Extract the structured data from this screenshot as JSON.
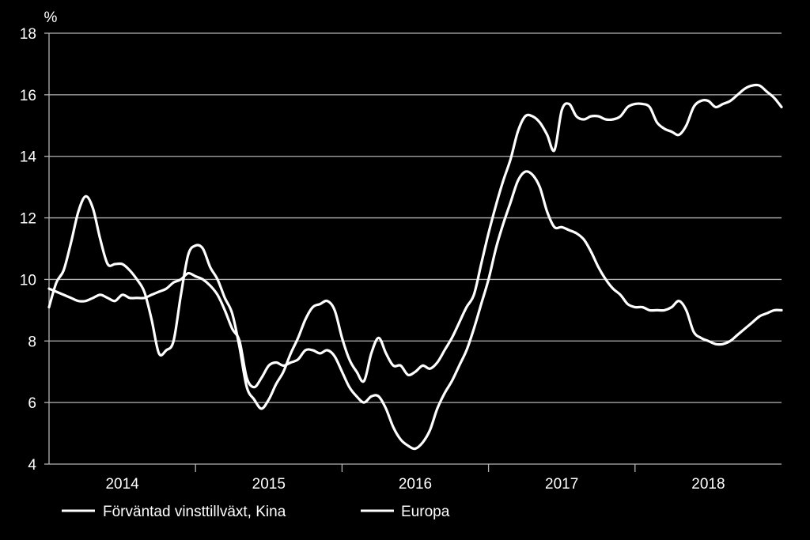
{
  "chart_data": {
    "type": "line",
    "ylabel": "%",
    "ylim": [
      4,
      18
    ],
    "yticks": [
      "4",
      "6",
      "8",
      "10",
      "12",
      "14",
      "16",
      "18"
    ],
    "xlim": [
      2013.0,
      2018.0
    ],
    "year_labels": [
      "2014",
      "2015",
      "2016",
      "2017",
      "2018"
    ],
    "grid": "horizontal",
    "legend_position": "bottom",
    "line_color": "#ffffff",
    "series": [
      {
        "name": "Förväntad vinsttillväxt, Kina",
        "x": [
          2013.0,
          2013.05,
          2013.1,
          2013.15,
          2013.2,
          2013.25,
          2013.3,
          2013.35,
          2013.4,
          2013.45,
          2013.5,
          2013.55,
          2013.6,
          2013.65,
          2013.7,
          2013.75,
          2013.8,
          2013.85,
          2013.9,
          2013.95,
          2014.0,
          2014.05,
          2014.1,
          2014.15,
          2014.2,
          2014.25,
          2014.3,
          2014.35,
          2014.4,
          2014.45,
          2014.5,
          2014.55,
          2014.6,
          2014.65,
          2014.7,
          2014.75,
          2014.8,
          2014.85,
          2014.9,
          2014.95,
          2015.0,
          2015.05,
          2015.1,
          2015.15,
          2015.2,
          2015.25,
          2015.3,
          2015.35,
          2015.4,
          2015.45,
          2015.5,
          2015.55,
          2015.6,
          2015.65,
          2015.7,
          2015.75,
          2015.8,
          2015.85,
          2015.9,
          2015.95,
          2016.0,
          2016.05,
          2016.1,
          2016.15,
          2016.2,
          2016.25,
          2016.3,
          2016.35,
          2016.4,
          2016.45,
          2016.5,
          2016.55,
          2016.6,
          2016.65,
          2016.7,
          2016.75,
          2016.8,
          2016.85,
          2016.9,
          2016.95,
          2017.0,
          2017.05,
          2017.1,
          2017.15,
          2017.2,
          2017.25,
          2017.3,
          2017.35,
          2017.4,
          2017.45,
          2017.5,
          2017.55,
          2017.6,
          2017.65,
          2017.7,
          2017.75,
          2017.8,
          2017.85,
          2017.9,
          2017.95,
          2018.0
        ],
        "values": [
          9.1,
          9.9,
          10.3,
          11.2,
          12.2,
          12.7,
          12.3,
          11.3,
          10.5,
          10.5,
          10.5,
          10.3,
          10.0,
          9.6,
          8.7,
          7.6,
          7.7,
          8.0,
          9.5,
          10.8,
          11.1,
          11.0,
          10.4,
          10.0,
          9.4,
          8.9,
          7.8,
          6.5,
          6.1,
          5.8,
          6.1,
          6.6,
          7.0,
          7.6,
          8.1,
          8.7,
          9.1,
          9.2,
          9.3,
          9.0,
          8.1,
          7.4,
          7.0,
          6.7,
          7.6,
          8.1,
          7.6,
          7.2,
          7.2,
          6.9,
          7.0,
          7.2,
          7.1,
          7.3,
          7.7,
          8.1,
          8.6,
          9.1,
          9.5,
          10.5,
          11.5,
          12.4,
          13.2,
          13.9,
          14.8,
          15.3,
          15.3,
          15.1,
          14.7,
          14.2,
          15.5,
          15.7,
          15.3,
          15.2,
          15.3,
          15.3,
          15.2,
          15.2,
          15.3,
          15.6,
          15.7,
          15.7,
          15.6,
          15.1,
          14.9,
          14.8,
          14.7,
          15.0,
          15.6,
          15.8,
          15.8,
          15.6,
          15.7,
          15.8,
          16.0,
          16.2,
          16.3,
          16.3,
          16.1,
          15.9,
          15.6
        ]
      },
      {
        "name": "Europa",
        "x": [
          2013.0,
          2013.05,
          2013.1,
          2013.15,
          2013.2,
          2013.25,
          2013.3,
          2013.35,
          2013.4,
          2013.45,
          2013.5,
          2013.55,
          2013.6,
          2013.65,
          2013.7,
          2013.75,
          2013.8,
          2013.85,
          2013.9,
          2013.95,
          2014.0,
          2014.05,
          2014.1,
          2014.15,
          2014.2,
          2014.25,
          2014.3,
          2014.35,
          2014.4,
          2014.45,
          2014.5,
          2014.55,
          2014.6,
          2014.65,
          2014.7,
          2014.75,
          2014.8,
          2014.85,
          2014.9,
          2014.95,
          2015.0,
          2015.05,
          2015.1,
          2015.15,
          2015.2,
          2015.25,
          2015.3,
          2015.35,
          2015.4,
          2015.45,
          2015.5,
          2015.55,
          2015.6,
          2015.65,
          2015.7,
          2015.75,
          2015.8,
          2015.85,
          2015.9,
          2015.95,
          2016.0,
          2016.05,
          2016.1,
          2016.15,
          2016.2,
          2016.25,
          2016.3,
          2016.35,
          2016.4,
          2016.45,
          2016.5,
          2016.55,
          2016.6,
          2016.65,
          2016.7,
          2016.75,
          2016.8,
          2016.85,
          2016.9,
          2016.95,
          2017.0,
          2017.05,
          2017.1,
          2017.15,
          2017.2,
          2017.25,
          2017.3,
          2017.35,
          2017.4,
          2017.45,
          2017.5,
          2017.55,
          2017.6,
          2017.65,
          2017.7,
          2017.75,
          2017.8,
          2017.85,
          2017.9,
          2017.95,
          2018.0
        ],
        "values": [
          9.7,
          9.6,
          9.5,
          9.4,
          9.3,
          9.3,
          9.4,
          9.5,
          9.4,
          9.3,
          9.5,
          9.4,
          9.4,
          9.4,
          9.5,
          9.6,
          9.7,
          9.9,
          10.0,
          10.2,
          10.1,
          10.0,
          9.8,
          9.5,
          9.0,
          8.4,
          8.0,
          6.8,
          6.5,
          6.8,
          7.2,
          7.3,
          7.2,
          7.3,
          7.4,
          7.7,
          7.7,
          7.6,
          7.7,
          7.5,
          7.0,
          6.5,
          6.2,
          6.0,
          6.2,
          6.2,
          5.8,
          5.2,
          4.8,
          4.6,
          4.5,
          4.7,
          5.1,
          5.8,
          6.3,
          6.7,
          7.2,
          7.7,
          8.4,
          9.2,
          10.0,
          11.0,
          11.8,
          12.5,
          13.2,
          13.5,
          13.4,
          13.0,
          12.2,
          11.7,
          11.7,
          11.6,
          11.5,
          11.3,
          10.9,
          10.4,
          10.0,
          9.7,
          9.5,
          9.2,
          9.1,
          9.1,
          9.0,
          9.0,
          9.0,
          9.1,
          9.3,
          9.0,
          8.3,
          8.1,
          8.0,
          7.9,
          7.9,
          8.0,
          8.2,
          8.4,
          8.6,
          8.8,
          8.9,
          9.0,
          9.0
        ]
      }
    ]
  }
}
